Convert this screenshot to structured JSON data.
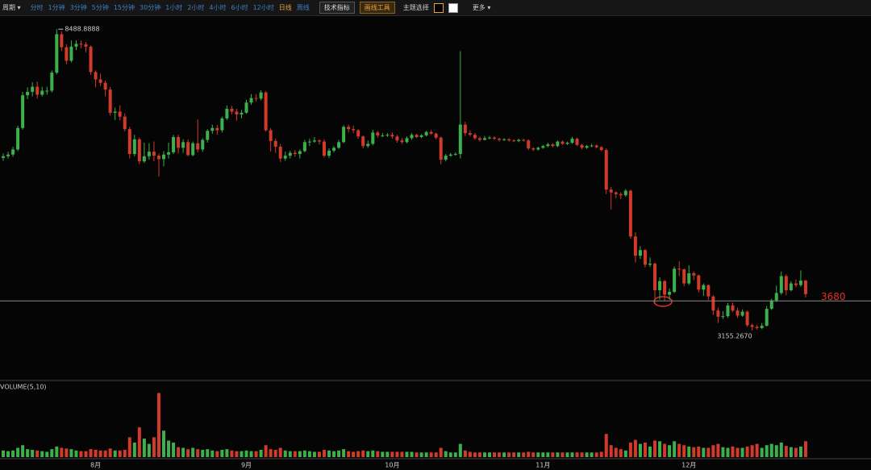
{
  "toolbar": {
    "period": "周期 ▾",
    "intervals": [
      "分时",
      "1分钟",
      "3分钟",
      "5分钟",
      "15分钟",
      "30分钟",
      "1小时",
      "2小时",
      "4小时",
      "6小时",
      "12小时",
      "日线",
      "周线"
    ],
    "indicators": "技术指标",
    "drawing_tools": "画线工具",
    "theme": "主题选择",
    "more": "更多 ▾"
  },
  "chart_data": {
    "type": "candlestick",
    "volume_label": "VOLUME(5,10)",
    "up_color": "#3cb04a",
    "down_color": "#d23a2a",
    "categories": [
      null,
      null,
      null,
      null,
      null,
      null,
      null,
      null,
      null,
      null,
      null,
      null,
      null,
      null,
      null,
      null,
      null,
      null,
      null,
      "8月",
      null,
      null,
      null,
      null,
      null,
      null,
      null,
      null,
      null,
      null,
      null,
      null,
      null,
      null,
      null,
      null,
      null,
      null,
      null,
      null,
      null,
      null,
      null,
      null,
      null,
      null,
      null,
      null,
      null,
      null,
      "9月",
      null,
      null,
      null,
      null,
      null,
      null,
      null,
      null,
      null,
      null,
      null,
      null,
      null,
      null,
      null,
      null,
      null,
      null,
      null,
      null,
      null,
      null,
      null,
      null,
      null,
      null,
      null,
      null,
      null,
      "10月",
      null,
      null,
      null,
      null,
      null,
      null,
      null,
      null,
      null,
      null,
      null,
      null,
      null,
      null,
      null,
      null,
      null,
      null,
      null,
      null,
      null,
      null,
      null,
      null,
      null,
      null,
      null,
      null,
      null,
      null,
      "11月",
      null,
      null,
      null,
      null,
      null,
      null,
      null,
      null,
      null,
      null,
      null,
      null,
      null,
      null,
      null,
      null,
      null,
      null,
      null,
      null,
      null,
      null,
      null,
      null,
      null,
      null,
      null,
      null,
      null,
      "12月",
      null,
      null,
      null,
      null,
      null,
      null,
      null,
      null,
      null,
      null,
      null,
      null,
      null,
      null,
      null,
      null,
      null,
      null,
      null,
      null,
      null,
      null,
      null,
      null
    ],
    "open": [
      6210,
      6240,
      6270,
      6360,
      6740,
      7320,
      7380,
      7470,
      7330,
      7400,
      7400,
      7720,
      8400,
      8170,
      7930,
      8180,
      8230,
      8220,
      8180,
      7730,
      7600,
      7540,
      7420,
      7010,
      7030,
      6940,
      6720,
      6280,
      6540,
      6150,
      6240,
      6320,
      6250,
      6190,
      6270,
      6310,
      6580,
      6390,
      6490,
      6260,
      6470,
      6360,
      6530,
      6690,
      6740,
      6700,
      6910,
      7080,
      7030,
      6980,
      7010,
      7190,
      7270,
      7260,
      7370,
      6700,
      6510,
      6410,
      6200,
      6250,
      6300,
      6280,
      6330,
      6490,
      6500,
      6520,
      6500,
      6250,
      6340,
      6390,
      6490,
      6760,
      6720,
      6700,
      6590,
      6420,
      6460,
      6660,
      6610,
      6610,
      6620,
      6590,
      6520,
      6490,
      6560,
      6620,
      6580,
      6610,
      6670,
      6640,
      6570,
      6180,
      6250,
      6270,
      6280,
      6800,
      6650,
      6620,
      6560,
      6530,
      6560,
      6570,
      6550,
      6530,
      6540,
      6520,
      6510,
      6530,
      6520,
      6380,
      6360,
      6390,
      6420,
      6450,
      6420,
      6500,
      6460,
      6480,
      6550,
      6440,
      6390,
      6420,
      6430,
      6400,
      6350,
      5650,
      5600,
      5570,
      5550,
      5630,
      4820,
      4480,
      4580,
      4320,
      4340,
      3870,
      4030,
      3790,
      3840,
      4250,
      4240,
      3990,
      4170,
      4130,
      3880,
      3960,
      3760,
      3510,
      3400,
      3410,
      3600,
      3510,
      3420,
      3490,
      3250,
      3220,
      3200,
      3240,
      3540,
      3690,
      3820,
      4120,
      3870,
      3990,
      3960,
      4040
    ],
    "high": [
      6290,
      6320,
      6410,
      6780,
      7380,
      7460,
      7550,
      7560,
      7470,
      7470,
      7760,
      8488.8888,
      8450,
      8220,
      8290,
      8290,
      8290,
      8260,
      8200,
      7760,
      7700,
      7580,
      7470,
      7100,
      7140,
      7000,
      6760,
      6620,
      6570,
      6480,
      6470,
      6500,
      6290,
      6330,
      6480,
      6620,
      6620,
      6540,
      6540,
      6500,
      6890,
      6560,
      6720,
      6800,
      6790,
      6940,
      7140,
      7130,
      7080,
      7060,
      7240,
      7340,
      7340,
      7410,
      7390,
      6740,
      6550,
      6460,
      6320,
      6340,
      6350,
      6360,
      6530,
      6550,
      6580,
      6540,
      6540,
      6380,
      6420,
      6530,
      6790,
      6800,
      6780,
      6720,
      6610,
      6520,
      6710,
      6690,
      6650,
      6650,
      6660,
      6620,
      6560,
      6590,
      6650,
      6640,
      6630,
      6690,
      6700,
      6660,
      6590,
      6280,
      6300,
      6310,
      8100,
      6850,
      6700,
      6650,
      6590,
      6600,
      6600,
      6590,
      6570,
      6560,
      6560,
      6540,
      6550,
      6550,
      6540,
      6400,
      6410,
      6440,
      6480,
      6470,
      6520,
      6520,
      6500,
      6580,
      6570,
      6460,
      6440,
      6460,
      6450,
      6420,
      6380,
      5700,
      5620,
      5600,
      5660,
      5650,
      4900,
      4650,
      4600,
      4450,
      4360,
      4100,
      4050,
      3900,
      4290,
      4380,
      4250,
      4310,
      4200,
      4150,
      3990,
      3970,
      3780,
      3560,
      3500,
      3640,
      3650,
      3560,
      3530,
      3510,
      3280,
      3260,
      3290,
      3590,
      3720,
      3950,
      4200,
      4150,
      4030,
      4060,
      4220,
      4050
    ],
    "low": [
      6160,
      6200,
      6230,
      6330,
      6710,
      7250,
      7300,
      7260,
      7300,
      7330,
      7370,
      7690,
      8100,
      7870,
      7900,
      8120,
      8150,
      8080,
      7680,
      7460,
      7480,
      7300,
      6960,
      6880,
      6880,
      6680,
      6200,
      6240,
      6100,
      6120,
      6180,
      6150,
      5880,
      6060,
      6200,
      6280,
      6290,
      6300,
      6240,
      6240,
      6310,
      6320,
      6480,
      6640,
      6620,
      6660,
      6880,
      6980,
      6870,
      6910,
      6990,
      7150,
      7210,
      7230,
      6680,
      6320,
      6300,
      6140,
      6160,
      6200,
      6230,
      6200,
      6310,
      6420,
      6480,
      6450,
      6220,
      6210,
      6310,
      6370,
      6470,
      6660,
      6650,
      6550,
      6380,
      6390,
      6440,
      6570,
      6580,
      6580,
      6550,
      6480,
      6460,
      6470,
      6530,
      6560,
      6560,
      6590,
      6620,
      6540,
      6100,
      6150,
      6230,
      6250,
      6200,
      6600,
      6590,
      6530,
      6500,
      6520,
      6540,
      6530,
      6500,
      6510,
      6500,
      6490,
      6490,
      6500,
      6350,
      6330,
      6340,
      6370,
      6400,
      6400,
      6400,
      6440,
      6440,
      6460,
      6420,
      6360,
      6370,
      6400,
      6380,
      6330,
      5570,
      5300,
      5500,
      5480,
      5520,
      4780,
      4360,
      4420,
      4270,
      4280,
      3650,
      3700,
      3680,
      3700,
      3820,
      4120,
      3940,
      3960,
      4050,
      3830,
      3770,
      3700,
      3430,
      3290,
      3360,
      3380,
      3480,
      3380,
      3400,
      3220,
      3155.267,
      3170,
      3180,
      3230,
      3520,
      3660,
      3790,
      3780,
      3850,
      3920,
      3930,
      3740
    ],
    "close": [
      6240,
      6270,
      6360,
      6740,
      7320,
      7380,
      7470,
      7330,
      7400,
      7400,
      7720,
      8400,
      8170,
      7930,
      8180,
      8230,
      8220,
      8180,
      7730,
      7600,
      7540,
      7420,
      7010,
      7030,
      6940,
      6720,
      6280,
      6540,
      6150,
      6240,
      6320,
      6250,
      6190,
      6270,
      6310,
      6580,
      6390,
      6490,
      6260,
      6470,
      6360,
      6530,
      6690,
      6740,
      6700,
      6910,
      7080,
      7030,
      6980,
      7010,
      7190,
      7270,
      7260,
      7370,
      6700,
      6510,
      6410,
      6200,
      6250,
      6300,
      6280,
      6330,
      6490,
      6500,
      6520,
      6500,
      6250,
      6340,
      6390,
      6490,
      6760,
      6720,
      6700,
      6590,
      6420,
      6460,
      6660,
      6610,
      6610,
      6620,
      6590,
      6520,
      6490,
      6560,
      6620,
      6580,
      6610,
      6670,
      6640,
      6570,
      6180,
      6250,
      6270,
      6280,
      6800,
      6650,
      6620,
      6560,
      6530,
      6560,
      6570,
      6550,
      6530,
      6540,
      6520,
      6510,
      6530,
      6520,
      6380,
      6360,
      6390,
      6420,
      6450,
      6420,
      6500,
      6460,
      6480,
      6550,
      6440,
      6390,
      6420,
      6430,
      6400,
      6350,
      5650,
      5600,
      5570,
      5550,
      5630,
      4820,
      4480,
      4580,
      4320,
      4340,
      3870,
      4030,
      3790,
      3840,
      4250,
      4240,
      3990,
      4170,
      4130,
      3880,
      3960,
      3760,
      3510,
      3400,
      3410,
      3600,
      3510,
      3420,
      3490,
      3250,
      3220,
      3200,
      3240,
      3540,
      3690,
      3820,
      4120,
      3870,
      3990,
      3960,
      4040,
      3800
    ],
    "volume": [
      10,
      9,
      10,
      14,
      18,
      12,
      11,
      10,
      9,
      8,
      12,
      16,
      14,
      13,
      12,
      10,
      9,
      9,
      12,
      11,
      10,
      10,
      13,
      10,
      10,
      11,
      30,
      22,
      45,
      28,
      20,
      30,
      97,
      40,
      25,
      22,
      15,
      14,
      12,
      14,
      12,
      11,
      12,
      10,
      9,
      11,
      12,
      10,
      9,
      9,
      10,
      9,
      9,
      11,
      18,
      12,
      11,
      14,
      10,
      9,
      9,
      9,
      10,
      9,
      8,
      8,
      11,
      10,
      9,
      10,
      12,
      9,
      8,
      9,
      10,
      9,
      10,
      9,
      8,
      8,
      8,
      8,
      8,
      8,
      8,
      7,
      7,
      7,
      7,
      7,
      14,
      9,
      7,
      7,
      20,
      10,
      8,
      7,
      7,
      7,
      7,
      7,
      7,
      7,
      7,
      7,
      7,
      7,
      8,
      7,
      7,
      7,
      7,
      7,
      7,
      7,
      7,
      7,
      7,
      7,
      7,
      7,
      7,
      8,
      35,
      18,
      14,
      12,
      10,
      22,
      26,
      20,
      22,
      16,
      25,
      24,
      20,
      18,
      24,
      20,
      18,
      16,
      15,
      16,
      14,
      14,
      18,
      20,
      15,
      14,
      16,
      14,
      14,
      16,
      18,
      20,
      14,
      18,
      20,
      18,
      22,
      17,
      15,
      14,
      16,
      24
    ],
    "low_label": "3155.2670",
    "hline": 3680,
    "ylim": [
      2300,
      8720
    ],
    "vlim": [
      0,
      100
    ]
  }
}
